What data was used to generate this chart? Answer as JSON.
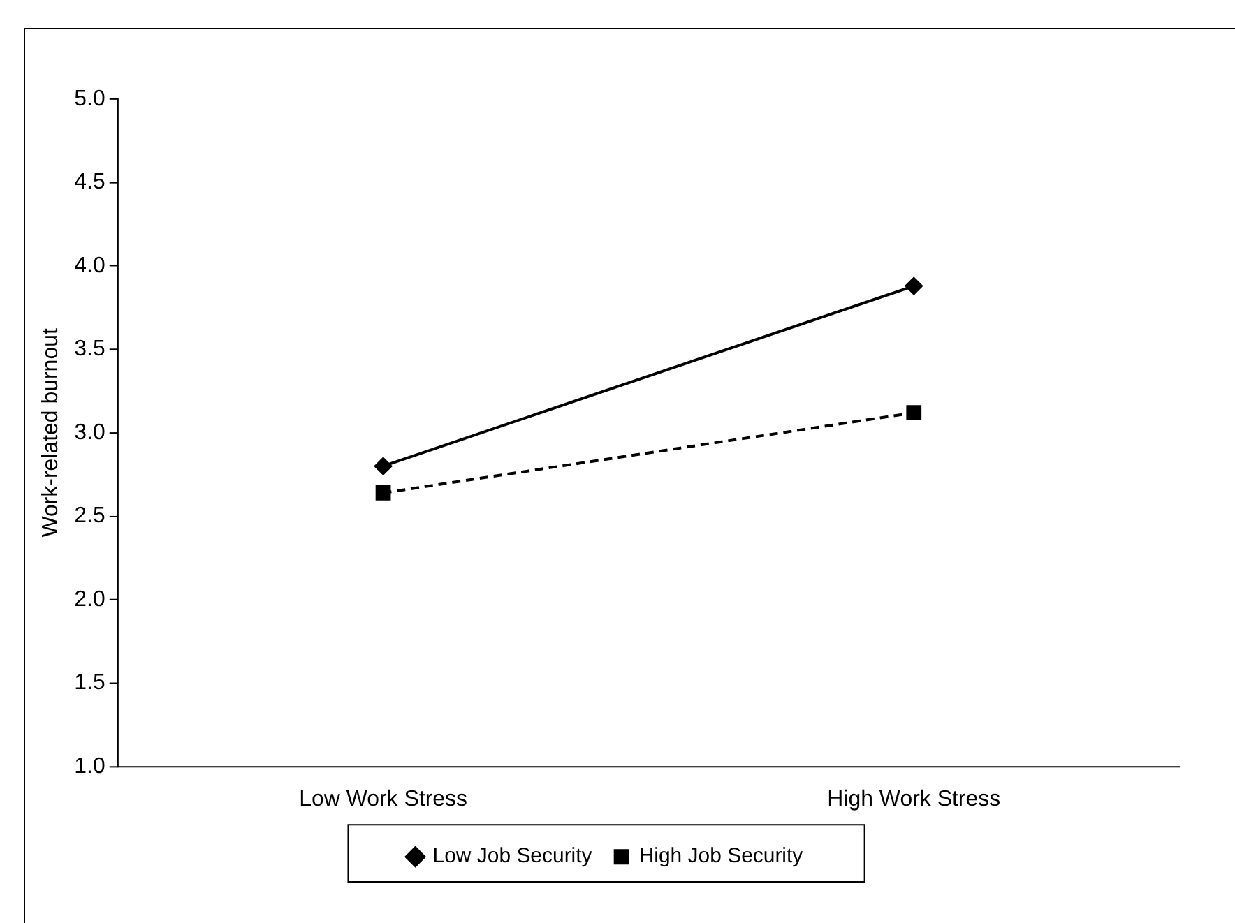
{
  "chart_data": {
    "type": "line",
    "ylabel": "Work-related burnout",
    "categories": [
      "Low Work Stress",
      "High Work Stress"
    ],
    "series": [
      {
        "name": "Low Job Security",
        "color": "#000000",
        "values": [
          2.8,
          3.88
        ],
        "marker": "diamond",
        "line_style": "solid"
      },
      {
        "name": "High Job Security",
        "color": "#000000",
        "values": [
          2.64,
          3.12
        ],
        "marker": "square",
        "line_style": "dashed"
      }
    ],
    "ylim": [
      1,
      5
    ],
    "yticks": [
      {
        "value": 1,
        "label": "1.0"
      },
      {
        "value": 1.5,
        "label": "1.5"
      },
      {
        "value": 2,
        "label": "2.0"
      },
      {
        "value": 2.5,
        "label": "2.5"
      },
      {
        "value": 3,
        "label": "3.0"
      },
      {
        "value": 3.5,
        "label": "3.5"
      },
      {
        "value": 4,
        "label": "4.0"
      },
      {
        "value": 4.5,
        "label": "4.5"
      },
      {
        "value": 5,
        "label": "5.0"
      }
    ],
    "grid": false,
    "legend": "bottom"
  }
}
